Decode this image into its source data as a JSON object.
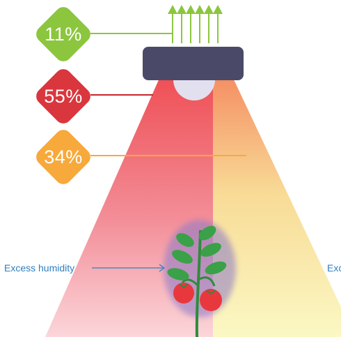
{
  "stats": [
    {
      "value": "11%",
      "color": "#8cc63f"
    },
    {
      "value": "55%",
      "color": "#d9373d"
    },
    {
      "value": "34%",
      "color": "#f7a93b"
    }
  ],
  "labels": {
    "left": "Excess humidity",
    "right": "Exc"
  },
  "icons": {
    "lamp": "grow-lamp-icon",
    "plant": "tomato-plant-icon",
    "arrows": "upward-arrows-icon"
  }
}
